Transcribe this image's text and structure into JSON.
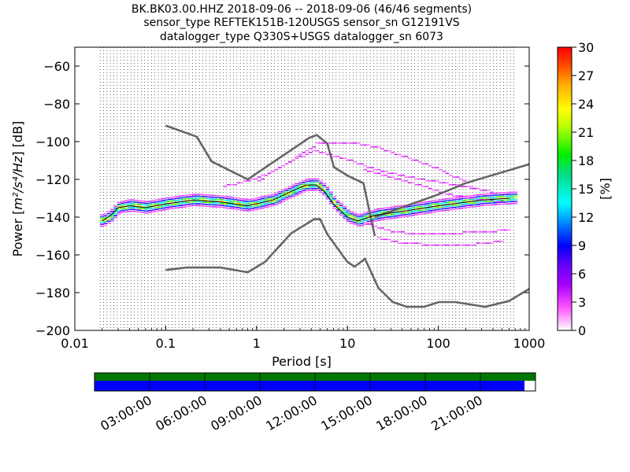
{
  "chart_data": {
    "type": "heatmap",
    "title_lines": [
      "BK.BK03.00.HHZ   2018-09-06 -- 2018-09-06  (46/46 segments)",
      "sensor_type REFTEK151B-120USGS sensor_sn G12191VS",
      "datalogger_type Q330S+USGS datalogger_sn 6073"
    ],
    "xlabel": "Period [s]",
    "ylabel_prefix": "Power [",
    "ylabel_units": "m²/s⁴/Hz",
    "ylabel_suffix": "] [dB]",
    "x_scale": "log",
    "xlim": [
      0.01,
      1000
    ],
    "ylim": [
      -200,
      -50
    ],
    "x_ticks": [
      0.01,
      0.1,
      1,
      10,
      100,
      1000
    ],
    "x_tick_labels": [
      "0.01",
      "0.1",
      "1",
      "10",
      "100",
      "1000"
    ],
    "y_ticks": [
      -200,
      -180,
      -160,
      -140,
      -120,
      -100,
      -80,
      -60
    ],
    "y_tick_labels": [
      "−200",
      "−180",
      "−160",
      "−140",
      "−120",
      "−100",
      "−80",
      "−60"
    ],
    "grid": "dotted vertical lines at period bins",
    "colorbar": {
      "label": "[%]",
      "range": [
        0,
        30
      ],
      "ticks": [
        0,
        3,
        6,
        9,
        12,
        15,
        18,
        21,
        24,
        27,
        30
      ],
      "colormap": "pqlx"
    },
    "noise_models": [
      {
        "x": [
          0.1,
          0.22,
          0.32,
          0.8,
          3.8,
          4.6,
          6,
          7.1,
          10,
          15,
          20
        ],
        "y": [
          -91.5,
          -97.4,
          -110.5,
          -120,
          -98,
          -96.5,
          -101,
          -113.5,
          -118,
          -122,
          -150
        ]
      },
      {
        "x": [
          20,
          100,
          200,
          1000
        ],
        "y": [
          -140,
          -128,
          -122,
          -112
        ]
      },
      {
        "x": [
          0.1,
          0.17,
          0.4,
          0.8,
          1.24,
          2.4,
          4.3,
          5,
          6,
          10,
          12,
          15.6,
          21.9,
          31.6,
          45,
          70,
          101,
          154,
          328,
          600,
          1000
        ],
        "y": [
          -168,
          -166.7,
          -166.7,
          -169.2,
          -163.7,
          -148.6,
          -141.1,
          -141.1,
          -149,
          -163.8,
          -166.2,
          -162.1,
          -177.5,
          -185,
          -187.5,
          -187.5,
          -185,
          -185,
          -187.5,
          -184.4,
          -178
        ]
      }
    ],
    "mode_curve": {
      "x": [
        0.02,
        0.025,
        0.03,
        0.04,
        0.06,
        0.1,
        0.2,
        0.4,
        0.8,
        1.5,
        2.5,
        3.5,
        4.5,
        5.5,
        7,
        10,
        13,
        20,
        40,
        100,
        300,
        600
      ],
      "y": [
        -142,
        -139,
        -135,
        -134,
        -135,
        -133,
        -131,
        -132,
        -134,
        -131,
        -126,
        -123,
        -123,
        -126,
        -133,
        -140,
        -142,
        -139,
        -137,
        -134,
        -131,
        -130
      ]
    },
    "upper_curves": [
      {
        "x": [
          1,
          2,
          3.5,
          4.5,
          6,
          8,
          12,
          20,
          40,
          80,
          150,
          250
        ],
        "y": [
          -121,
          -112,
          -105,
          -101,
          -101,
          -101,
          -101,
          -103,
          -108,
          -113,
          -119,
          -125
        ]
      },
      {
        "x": [
          0.4,
          0.8,
          1.5,
          2.5,
          4,
          5,
          7,
          10,
          15,
          30,
          60,
          150,
          400
        ],
        "y": [
          -124,
          -121,
          -116,
          -110,
          -105,
          -106,
          -108,
          -110,
          -113,
          -117,
          -120,
          -123,
          -127
        ]
      },
      {
        "x": [
          15,
          30,
          60,
          100,
          200,
          500
        ],
        "y": [
          -115,
          -119,
          -123,
          -127,
          -130,
          -132
        ]
      }
    ],
    "lower_curves": [
      {
        "x": [
          20,
          40,
          100,
          200,
          500
        ],
        "y": [
          -151,
          -154,
          -155,
          -155,
          -153
        ]
      },
      {
        "x": [
          15,
          25,
          50,
          100,
          300,
          600
        ],
        "y": [
          -143,
          -147,
          -149,
          -149,
          -148,
          -147
        ]
      }
    ]
  },
  "time_axis": {
    "labels": [
      "03:00:00",
      "06:00:00",
      "09:00:00",
      "12:00:00",
      "15:00:00",
      "18:00:00",
      "21:00:00"
    ],
    "data_coverage": 1.0,
    "psd_coverage": 0.975,
    "data_color": "#007700",
    "psd_color": "#0000ff"
  }
}
